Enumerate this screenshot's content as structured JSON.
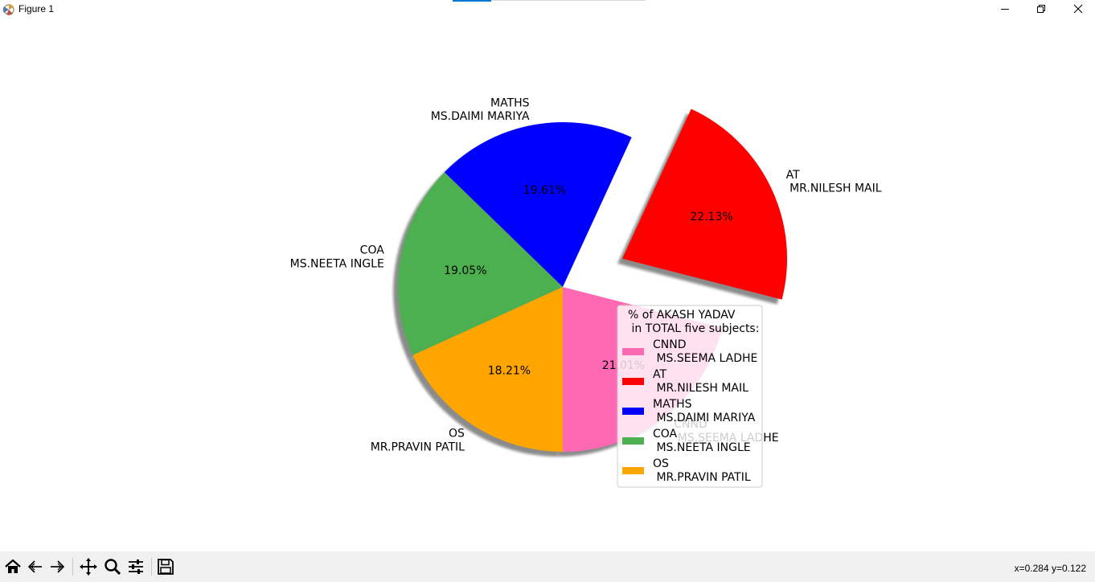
{
  "window": {
    "title": "Figure 1",
    "controls": [
      "minimize",
      "maximize",
      "close"
    ]
  },
  "chart_data": {
    "type": "pie",
    "slices": [
      {
        "label": "CNND\n MS.SEEMA LADHE",
        "pct_label": "21.01%",
        "value": 21.01,
        "color": "#ff69b4",
        "explode": false
      },
      {
        "label": "AT\n MR.NILESH MAIL",
        "pct_label": "22.13%",
        "value": 22.13,
        "color": "#ff0000",
        "explode": true
      },
      {
        "label": "MATHS\n MS.DAIMI MARIYA",
        "pct_label": "19.61%",
        "value": 19.61,
        "color": "#0000ff",
        "explode": false
      },
      {
        "label": "COA\n MS.NEETA INGLE",
        "pct_label": "19.05%",
        "value": 19.05,
        "color": "#4caf50",
        "explode": false
      },
      {
        "label": "OS\n MR.PRAVIN PATIL",
        "pct_label": "18.21%",
        "value": 18.21,
        "color": "#ffa500",
        "explode": false
      }
    ],
    "shadow": true,
    "start_angle": 270,
    "legend": {
      "title": "% of AKASH YADAV\n in TOTAL five subjects:",
      "placement": "lower-right"
    }
  },
  "toolbar": {
    "icons": [
      "home-icon",
      "back-icon",
      "forward-icon",
      "pan-icon",
      "zoom-icon",
      "configure-subplots-icon",
      "save-icon"
    ],
    "coords": "x=0.284 y=0.122"
  }
}
